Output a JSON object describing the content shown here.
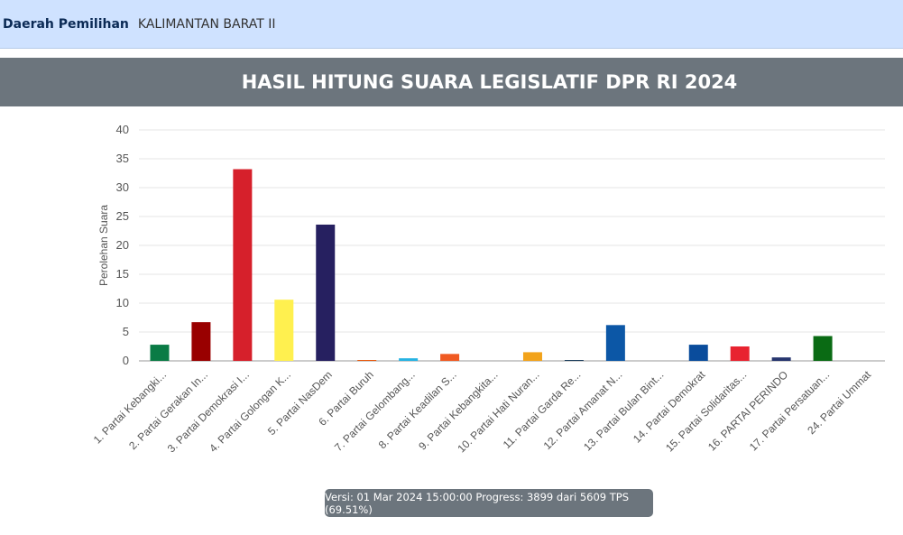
{
  "region": {
    "label": "Daerah Pemilihan",
    "value": "KALIMANTAN BARAT II"
  },
  "title": "HASIL HITUNG SUARA LEGISLATIF DPR RI 2024",
  "status": "Versi: 01 Mar 2024 15:00:00 Progress: 3899 dari 5609 TPS (69.51%)",
  "chart_data": {
    "type": "bar",
    "ylabel": "Perolehan Suara",
    "ylim": [
      0,
      40
    ],
    "yticks": [
      0,
      5,
      10,
      15,
      20,
      25,
      30,
      35,
      40
    ],
    "grid": true,
    "categories": [
      "1. Partai Kebangki...",
      "2. Partai Gerakan In...",
      "3. Partai Demokrasi I...",
      "4. Partai Golongan K...",
      "5. Partai NasDem",
      "6. Partai Buruh",
      "7. Partai Gelombang...",
      "8. Partai Keadilan S...",
      "9. Partai Kebangkita...",
      "10. Partai Hati Nuran...",
      "11. Partai Garda Re...",
      "12. Partai Amanat N...",
      "13. Partai Bulan Bint...",
      "14. Partai Demokrat",
      "15. Partai Solidaritas...",
      "16. PARTAI PERINDO",
      "17. Partai Persatuan...",
      "24. Partai Ummat"
    ],
    "values": [
      2.8,
      6.7,
      33.2,
      10.6,
      23.6,
      0.15,
      0.45,
      1.2,
      0,
      1.5,
      0.15,
      6.2,
      0,
      2.8,
      2.5,
      0.6,
      4.3,
      0
    ],
    "colors": [
      "#0a7b45",
      "#990000",
      "#d6202b",
      "#fff04f",
      "#262060",
      "#e8590c",
      "#26b3e3",
      "#f05a22",
      "#0d6b37",
      "#f2a31b",
      "#1c3d5c",
      "#0c57a6",
      "#1a7a3a",
      "#0a4c9c",
      "#e82330",
      "#26356e",
      "#0a6b14",
      "#333366"
    ]
  }
}
